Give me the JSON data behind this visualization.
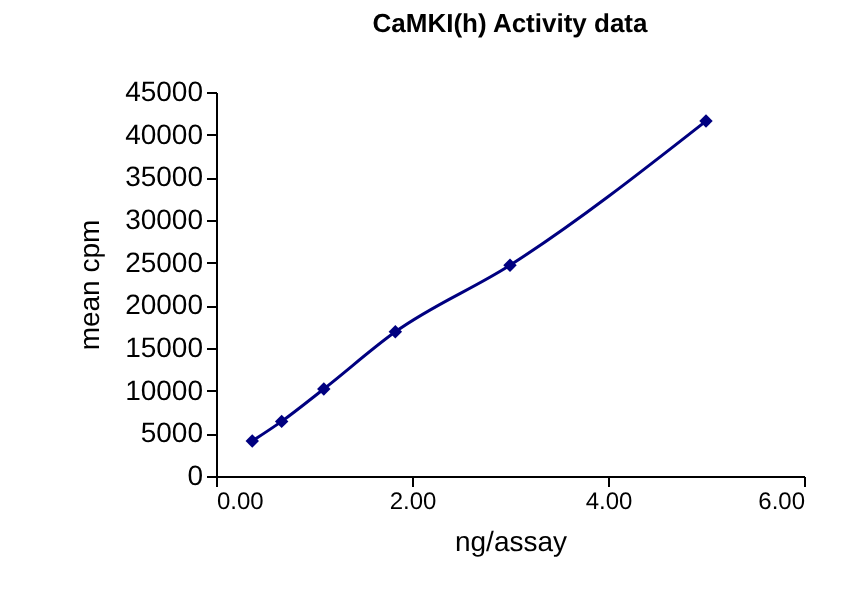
{
  "chart_data": {
    "type": "line",
    "title": "CaMKI(h) Activity data",
    "xlabel": "ng/assay",
    "ylabel": "mean cpm",
    "x": [
      0.37,
      0.67,
      1.1,
      1.83,
      3.0,
      5.0
    ],
    "series": [
      {
        "color": "#000080",
        "values": [
          4100,
          6400,
          10200,
          16900,
          24700,
          41600
        ]
      }
    ],
    "xlim": [
      0,
      6
    ],
    "xticks": [
      {
        "value": 0,
        "label": "0.00"
      },
      {
        "value": 2,
        "label": "2.00"
      },
      {
        "value": 4,
        "label": "4.00"
      },
      {
        "value": 6,
        "label": "6.00"
      }
    ],
    "ylim": [
      0,
      45000
    ],
    "yticks": [
      0,
      5000,
      10000,
      15000,
      20000,
      25000,
      30000,
      35000,
      40000,
      45000
    ],
    "marker": "diamond",
    "line_style": "solid",
    "grid": false
  }
}
